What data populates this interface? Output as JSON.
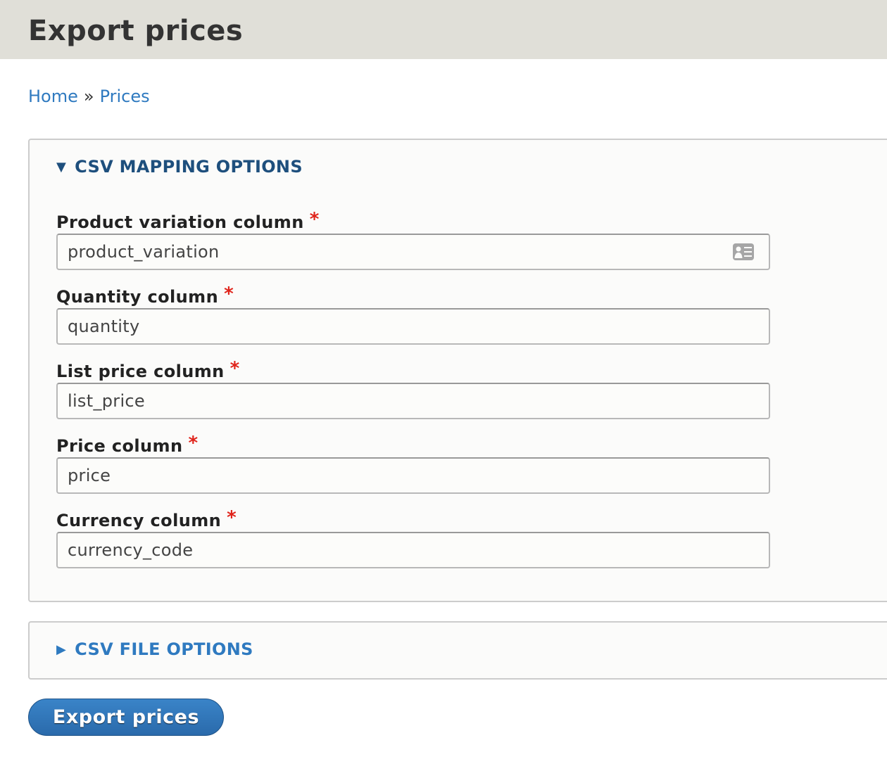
{
  "page": {
    "title": "Export prices"
  },
  "breadcrumb": {
    "items": [
      "Home",
      "Prices"
    ],
    "separator": "»"
  },
  "mapping": {
    "legend": "CSV MAPPING OPTIONS",
    "expanded": true,
    "fields": [
      {
        "label": "Product variation column",
        "value": "product_variation",
        "required": "*",
        "icon": "contact-card-icon"
      },
      {
        "label": "Quantity column",
        "value": "quantity",
        "required": "*"
      },
      {
        "label": "List price column",
        "value": "list_price",
        "required": "*"
      },
      {
        "label": "Price column",
        "value": "price",
        "required": "*"
      },
      {
        "label": "Currency column",
        "value": "currency_code",
        "required": "*"
      }
    ]
  },
  "file_options": {
    "legend": "CSV FILE OPTIONS",
    "expanded": false
  },
  "actions": {
    "submit_label": "Export prices"
  },
  "colors": {
    "link": "#2f7ac0",
    "legend_open": "#1e4f7d",
    "required": "#e0241b",
    "button": "#2f75b8",
    "header_bg": "#e0dfd8"
  }
}
